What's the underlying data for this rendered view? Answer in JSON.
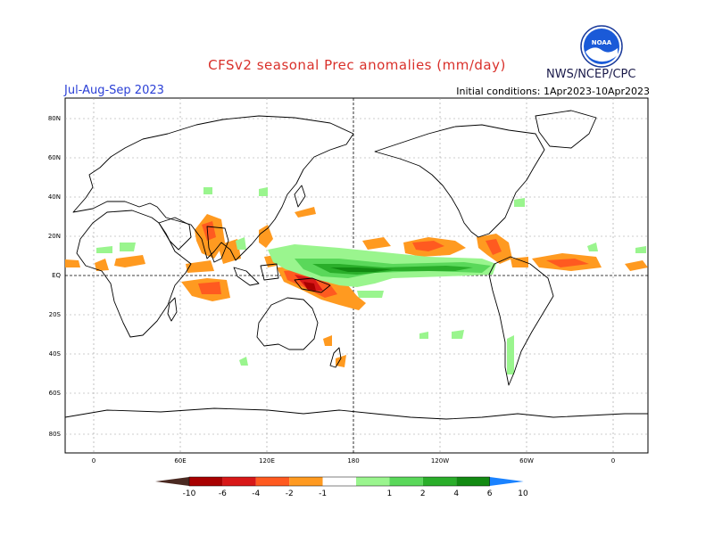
{
  "header": {
    "title": "CFSv2 seasonal Prec anomalies (mm/day)",
    "season": "Jul-Aug-Sep 2023",
    "initial_conditions": "Initial conditions: 1Apr2023-10Apr2023",
    "agency": "NWS/NCEP/CPC",
    "logo_text": "NOAA"
  },
  "map": {
    "lat_labels": [
      "80N",
      "60N",
      "40N",
      "20N",
      "EQ",
      "20S",
      "40S",
      "60S",
      "80S"
    ],
    "lon_labels": [
      "0",
      "60E",
      "120E",
      "180",
      "120W",
      "60W",
      "0"
    ]
  },
  "colorbar": {
    "labels": [
      "-10",
      "-6",
      "-4",
      "-2",
      "-1",
      "1",
      "2",
      "4",
      "6",
      "10"
    ],
    "colors": [
      "#4a2a22",
      "#a80000",
      "#d81818",
      "#ff5a20",
      "#ff9a20",
      "#ffffff",
      "#9af58e",
      "#5ad85a",
      "#2aae2a",
      "#128a12",
      "#1a82ff"
    ]
  }
}
